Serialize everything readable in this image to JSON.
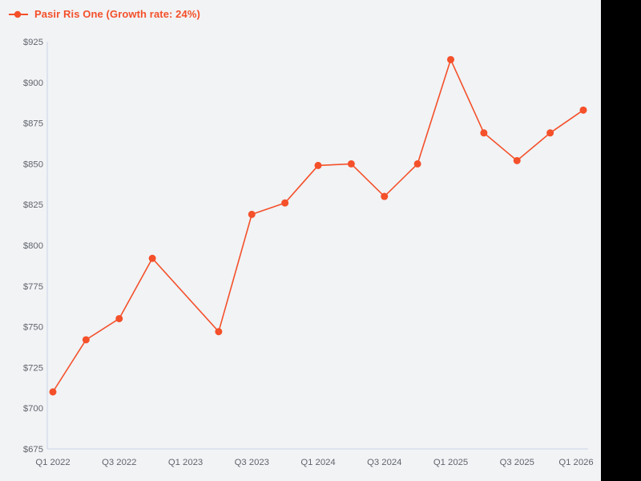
{
  "legend": {
    "label": "Pasir Ris One (Growth rate: 24%)",
    "series_name": "Pasir Ris One",
    "growth_rate": "24%"
  },
  "colors": {
    "accent": "#f4502a",
    "axis_line": "#c9d3e6",
    "tick_text": "#61646c",
    "background": "#f1f3f5",
    "right_bar": "#000000"
  },
  "chart_data": {
    "type": "line",
    "title": "Pasir Ris One (Growth rate: 24%)",
    "xlabel": "",
    "ylabel": "",
    "grid": false,
    "legend_position": "top-left",
    "x_slots": [
      "Q1 2022",
      "Q2 2022",
      "Q3 2022",
      "Q4 2022",
      "Q1 2023",
      "Q2 2023",
      "Q3 2023",
      "Q4 2023",
      "Q1 2024",
      "Q2 2024",
      "Q3 2024",
      "Q4 2024",
      "Q1 2025",
      "Q2 2025",
      "Q3 2025",
      "Q4 2025",
      "Q1 2026"
    ],
    "x_tick_labels": [
      "Q1 2022",
      "Q3 2022",
      "Q1 2023",
      "Q3 2023",
      "Q1 2024",
      "Q3 2024",
      "Q1 2025",
      "Q3 2025",
      "Q1 2026"
    ],
    "y_ticks": [
      925,
      900,
      875,
      850,
      825,
      800,
      775,
      750,
      725,
      700,
      675
    ],
    "y_tick_prefix": "$",
    "ylim": [
      675,
      925
    ],
    "series": [
      {
        "name": "Pasir Ris One",
        "color": "#f4502a",
        "points": [
          {
            "x": "Q1 2022",
            "y": 710
          },
          {
            "x": "Q2 2022",
            "y": 742
          },
          {
            "x": "Q3 2022",
            "y": 755
          },
          {
            "x": "Q4 2022",
            "y": 792
          },
          {
            "x": "Q2 2023",
            "y": 747
          },
          {
            "x": "Q3 2023",
            "y": 819
          },
          {
            "x": "Q4 2023",
            "y": 826
          },
          {
            "x": "Q1 2024",
            "y": 849
          },
          {
            "x": "Q2 2024",
            "y": 850
          },
          {
            "x": "Q3 2024",
            "y": 830
          },
          {
            "x": "Q4 2024",
            "y": 850
          },
          {
            "x": "Q1 2025",
            "y": 914
          },
          {
            "x": "Q2 2025",
            "y": 869
          },
          {
            "x": "Q3 2025",
            "y": 852
          },
          {
            "x": "Q4 2025",
            "y": 869
          },
          {
            "x": "Q1 2026",
            "y": 883
          }
        ]
      }
    ]
  }
}
